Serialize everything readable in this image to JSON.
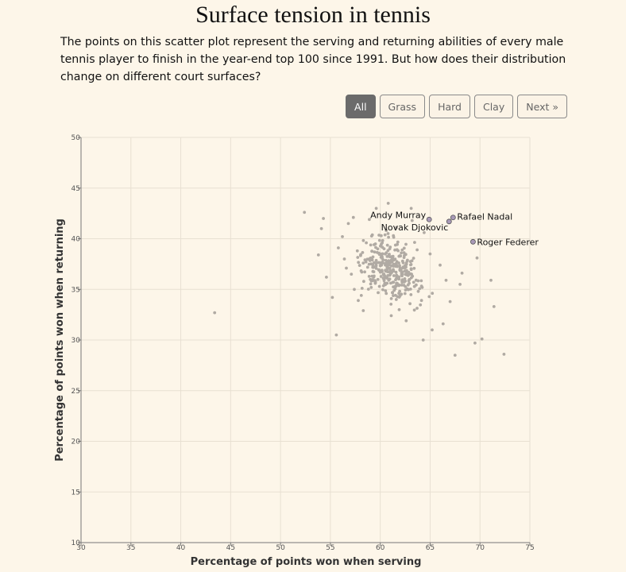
{
  "title": "Surface tension in tennis",
  "description": "The points on this scatter plot represent the serving and returning abilities of every male tennis player to finish in the year-end top 100 since 1991. But how does their distribution change on different court surfaces?",
  "filters": [
    {
      "label": "All",
      "active": true
    },
    {
      "label": "Grass",
      "active": false
    },
    {
      "label": "Hard",
      "active": false
    },
    {
      "label": "Clay",
      "active": false
    },
    {
      "label": "Next »",
      "active": false
    }
  ],
  "colors": {
    "point": "#b0aaa3",
    "highlight": "#a99ab8",
    "grid": "#e8e0d2",
    "axis": "#777777"
  },
  "chart_data": {
    "type": "scatter",
    "xlabel": "Percentage of points won when serving",
    "ylabel": "Percentage of points won when returning",
    "xlim": [
      30,
      75
    ],
    "ylim": [
      10,
      50
    ],
    "xticks": [
      30,
      35,
      40,
      45,
      50,
      55,
      60,
      65,
      70,
      75
    ],
    "yticks": [
      10,
      15,
      20,
      25,
      30,
      35,
      40,
      45,
      50
    ],
    "grid": true,
    "highlighted": [
      {
        "name": "Andy Murray",
        "x": 64.9,
        "y": 41.9
      },
      {
        "name": "Rafael Nadal",
        "x": 67.3,
        "y": 42.1
      },
      {
        "name": "Novak Djokovic",
        "x": 66.9,
        "y": 41.7
      },
      {
        "name": "Roger Federer",
        "x": 69.3,
        "y": 39.7
      }
    ],
    "points": [
      [
        43.4,
        32.7
      ],
      [
        52.4,
        42.6
      ],
      [
        54.3,
        42.0
      ],
      [
        54.1,
        41.0
      ],
      [
        53.8,
        38.4
      ],
      [
        54.6,
        36.2
      ],
      [
        55.2,
        34.2
      ],
      [
        55.6,
        30.5
      ],
      [
        56.2,
        40.2
      ],
      [
        56.8,
        41.5
      ],
      [
        57.3,
        42.1
      ],
      [
        56.4,
        38.0
      ],
      [
        57.1,
        36.5
      ],
      [
        57.8,
        33.9
      ],
      [
        58.3,
        32.9
      ],
      [
        58.9,
        41.9
      ],
      [
        59.6,
        43.0
      ],
      [
        60.8,
        43.5
      ],
      [
        61.6,
        41.1
      ],
      [
        63.2,
        41.8
      ],
      [
        64.4,
        40.6
      ],
      [
        65.0,
        38.5
      ],
      [
        66.0,
        37.4
      ],
      [
        66.6,
        35.9
      ],
      [
        67.0,
        33.8
      ],
      [
        66.3,
        31.6
      ],
      [
        65.2,
        31.0
      ],
      [
        64.3,
        30.0
      ],
      [
        62.6,
        31.9
      ],
      [
        61.9,
        33.0
      ],
      [
        67.5,
        28.5
      ],
      [
        69.5,
        29.7
      ],
      [
        70.2,
        30.1
      ],
      [
        72.4,
        28.6
      ],
      [
        71.4,
        33.3
      ],
      [
        71.1,
        35.9
      ],
      [
        69.7,
        38.1
      ],
      [
        68.2,
        36.6
      ],
      [
        68.0,
        35.5
      ],
      [
        63.1,
        43.0
      ],
      [
        55.8,
        39.1
      ],
      [
        56.6,
        37.1
      ],
      [
        57.4,
        35.0
      ],
      [
        58.6,
        39.6
      ],
      [
        59.2,
        37.9
      ],
      [
        60.3,
        36.1
      ],
      [
        61.4,
        34.9
      ],
      [
        62.3,
        37.2
      ],
      [
        62.9,
        35.6
      ],
      [
        63.7,
        38.9
      ],
      [
        60.1,
        40.3
      ],
      [
        59.5,
        35.8
      ],
      [
        58.1,
        34.4
      ],
      [
        61.1,
        32.4
      ],
      [
        60.6,
        34.6
      ],
      [
        57.7,
        38.8
      ]
    ],
    "cluster": {
      "cx": 61.0,
      "cy": 37.0,
      "sx": 2.4,
      "sy": 1.9,
      "n": 330
    }
  }
}
